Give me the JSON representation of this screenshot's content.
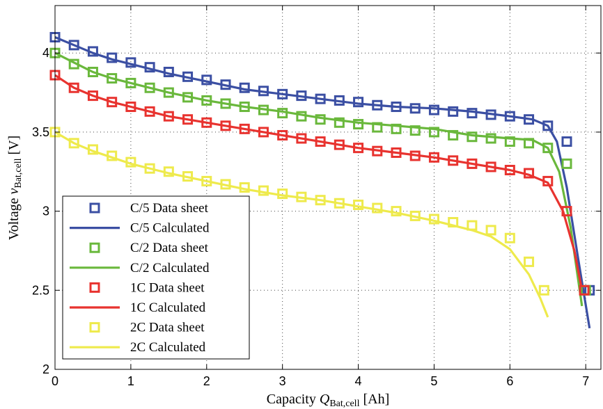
{
  "chart_data": {
    "type": "line",
    "xlabel_main": "Capacity",
    "xlabel_sym": "Q",
    "xlabel_sub": "Bat,cell",
    "xlabel_unit": "[Ah]",
    "ylabel_main": "Voltage",
    "ylabel_sym": "v",
    "ylabel_sub": "Bat,cell",
    "ylabel_unit": "[V]",
    "xlim": [
      0,
      7.2
    ],
    "ylim": [
      2,
      4.3
    ],
    "xticks": [
      0,
      1,
      2,
      3,
      4,
      5,
      6,
      7
    ],
    "yticks": [
      2,
      2.5,
      3,
      3.5,
      4
    ],
    "ytick_labels": [
      "2",
      "2.5",
      "3",
      "3.5",
      "4"
    ],
    "grid": true,
    "legend_position": "bottom-left",
    "series": [
      {
        "name": "C/5 Data sheet",
        "kind": "markers",
        "color": "#3b4fa3",
        "x": [
          0,
          0.25,
          0.5,
          0.75,
          1.0,
          1.25,
          1.5,
          1.75,
          2.0,
          2.25,
          2.5,
          2.75,
          3.0,
          3.25,
          3.5,
          3.75,
          4.0,
          4.25,
          4.5,
          4.75,
          5.0,
          5.25,
          5.5,
          5.75,
          6.0,
          6.25,
          6.5,
          6.75,
          7.05
        ],
        "y": [
          4.1,
          4.05,
          4.01,
          3.97,
          3.94,
          3.91,
          3.88,
          3.85,
          3.83,
          3.8,
          3.78,
          3.76,
          3.74,
          3.73,
          3.71,
          3.7,
          3.69,
          3.67,
          3.66,
          3.65,
          3.64,
          3.63,
          3.62,
          3.61,
          3.6,
          3.58,
          3.54,
          3.44,
          2.5
        ]
      },
      {
        "name": "C/5 Calculated",
        "kind": "line",
        "color": "#3b4fa3",
        "x": [
          0,
          0.25,
          0.5,
          0.75,
          1.0,
          1.5,
          2.0,
          2.5,
          3.0,
          3.5,
          4.0,
          4.5,
          5.0,
          5.5,
          6.0,
          6.3,
          6.5,
          6.62,
          6.75,
          6.9,
          7.05
        ],
        "y": [
          4.1,
          4.05,
          4.0,
          3.96,
          3.93,
          3.87,
          3.82,
          3.77,
          3.74,
          3.71,
          3.68,
          3.66,
          3.65,
          3.63,
          3.6,
          3.58,
          3.54,
          3.44,
          3.15,
          2.7,
          2.26
        ]
      },
      {
        "name": "C/2 Data sheet",
        "kind": "markers",
        "color": "#6ab83c",
        "x": [
          0,
          0.25,
          0.5,
          0.75,
          1.0,
          1.25,
          1.5,
          1.75,
          2.0,
          2.25,
          2.5,
          2.75,
          3.0,
          3.25,
          3.5,
          3.75,
          4.0,
          4.25,
          4.5,
          4.75,
          5.0,
          5.25,
          5.5,
          5.75,
          6.0,
          6.25,
          6.5,
          6.75,
          7.0
        ],
        "y": [
          4.0,
          3.93,
          3.88,
          3.84,
          3.81,
          3.78,
          3.75,
          3.72,
          3.7,
          3.68,
          3.66,
          3.64,
          3.62,
          3.6,
          3.58,
          3.56,
          3.55,
          3.53,
          3.52,
          3.51,
          3.5,
          3.48,
          3.47,
          3.46,
          3.44,
          3.43,
          3.4,
          3.3,
          2.5
        ]
      },
      {
        "name": "C/2 Calculated",
        "kind": "line",
        "color": "#6ab83c",
        "x": [
          0,
          0.25,
          0.5,
          0.75,
          1.0,
          1.5,
          2.0,
          2.5,
          3.0,
          3.5,
          4.0,
          4.5,
          5.0,
          5.5,
          6.0,
          6.3,
          6.5,
          6.65,
          6.8,
          6.95
        ],
        "y": [
          4.0,
          3.94,
          3.88,
          3.84,
          3.81,
          3.75,
          3.7,
          3.66,
          3.63,
          3.59,
          3.56,
          3.54,
          3.52,
          3.48,
          3.46,
          3.45,
          3.4,
          3.25,
          2.9,
          2.4
        ]
      },
      {
        "name": "1C Data sheet",
        "kind": "markers",
        "color": "#e8332f",
        "x": [
          0,
          0.25,
          0.5,
          0.75,
          1.0,
          1.25,
          1.5,
          1.75,
          2.0,
          2.25,
          2.5,
          2.75,
          3.0,
          3.25,
          3.5,
          3.75,
          4.0,
          4.25,
          4.5,
          4.75,
          5.0,
          5.25,
          5.5,
          5.75,
          6.0,
          6.25,
          6.5,
          6.75,
          6.98
        ],
        "y": [
          3.86,
          3.78,
          3.73,
          3.69,
          3.66,
          3.63,
          3.6,
          3.58,
          3.56,
          3.54,
          3.52,
          3.5,
          3.48,
          3.46,
          3.44,
          3.42,
          3.4,
          3.38,
          3.37,
          3.35,
          3.34,
          3.32,
          3.3,
          3.28,
          3.26,
          3.24,
          3.19,
          3.0,
          2.5
        ]
      },
      {
        "name": "1C Calculated",
        "kind": "line",
        "color": "#e8332f",
        "x": [
          0,
          0.25,
          0.5,
          0.75,
          1.0,
          1.5,
          2.0,
          2.5,
          3.0,
          3.5,
          4.0,
          4.5,
          5.0,
          5.5,
          6.0,
          6.25,
          6.5,
          6.7,
          6.85,
          6.95
        ],
        "y": [
          3.86,
          3.78,
          3.73,
          3.69,
          3.66,
          3.6,
          3.56,
          3.52,
          3.48,
          3.44,
          3.4,
          3.37,
          3.34,
          3.3,
          3.26,
          3.23,
          3.18,
          3.0,
          2.75,
          2.5
        ]
      },
      {
        "name": "2C Data sheet",
        "kind": "markers",
        "color": "#eeea4c",
        "x": [
          0,
          0.25,
          0.5,
          0.75,
          1.0,
          1.25,
          1.5,
          1.75,
          2.0,
          2.25,
          2.5,
          2.75,
          3.0,
          3.25,
          3.5,
          3.75,
          4.0,
          4.25,
          4.5,
          4.75,
          5.0,
          5.25,
          5.5,
          5.75,
          6.0,
          6.25,
          6.45
        ],
        "y": [
          3.5,
          3.43,
          3.39,
          3.35,
          3.31,
          3.27,
          3.25,
          3.22,
          3.19,
          3.17,
          3.15,
          3.13,
          3.11,
          3.09,
          3.07,
          3.05,
          3.04,
          3.02,
          3.0,
          2.97,
          2.95,
          2.93,
          2.91,
          2.88,
          2.83,
          2.68,
          2.5
        ]
      },
      {
        "name": "2C Calculated",
        "kind": "line",
        "color": "#eeea4c",
        "x": [
          0,
          0.25,
          0.5,
          0.75,
          1.0,
          1.5,
          2.0,
          2.5,
          3.0,
          3.5,
          4.0,
          4.5,
          5.0,
          5.5,
          5.75,
          6.0,
          6.25,
          6.4,
          6.5
        ],
        "y": [
          3.5,
          3.43,
          3.38,
          3.34,
          3.3,
          3.24,
          3.19,
          3.14,
          3.1,
          3.07,
          3.03,
          2.99,
          2.94,
          2.88,
          2.84,
          2.76,
          2.6,
          2.45,
          2.33
        ]
      }
    ]
  }
}
